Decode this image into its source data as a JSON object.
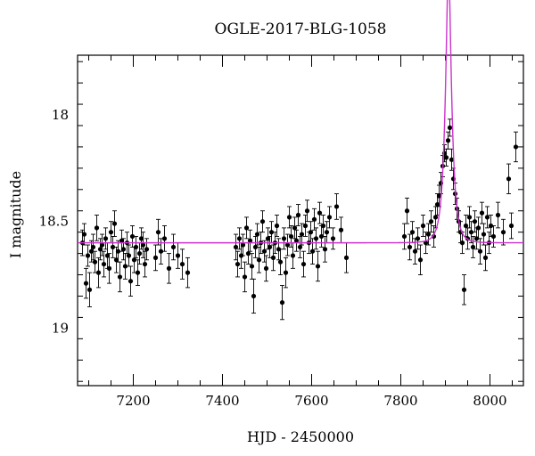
{
  "chart_data": {
    "type": "scatter",
    "title": "OGLE-2017-BLG-1058",
    "xlabel": "HJD - 2450000",
    "ylabel": "I magnitude",
    "xlim": [
      7075,
      8075
    ],
    "ylim": [
      19.27,
      17.72
    ],
    "y_inverted": true,
    "xticks": [
      7200,
      7400,
      7600,
      7800,
      8000
    ],
    "yticks": [
      18,
      18.5,
      19
    ],
    "grid": false,
    "legend": "none",
    "colors": {
      "data": "#000000",
      "model": "#cc33cc"
    },
    "series": [
      {
        "kind": "observations",
        "points": [
          [
            7086,
            18.6,
            0.06
          ],
          [
            7090,
            18.56,
            0.05
          ],
          [
            7094,
            18.79,
            0.07
          ],
          [
            7098,
            18.66,
            0.05
          ],
          [
            7102,
            18.82,
            0.08
          ],
          [
            7106,
            18.64,
            0.05
          ],
          [
            7110,
            18.62,
            0.06
          ],
          [
            7114,
            18.69,
            0.05
          ],
          [
            7118,
            18.53,
            0.06
          ],
          [
            7122,
            18.74,
            0.07
          ],
          [
            7126,
            18.63,
            0.05
          ],
          [
            7130,
            18.61,
            0.05
          ],
          [
            7134,
            18.7,
            0.06
          ],
          [
            7138,
            18.58,
            0.05
          ],
          [
            7142,
            18.66,
            0.06
          ],
          [
            7146,
            18.72,
            0.07
          ],
          [
            7150,
            18.55,
            0.05
          ],
          [
            7154,
            18.62,
            0.05
          ],
          [
            7158,
            18.51,
            0.06
          ],
          [
            7162,
            18.68,
            0.06
          ],
          [
            7166,
            18.64,
            0.05
          ],
          [
            7170,
            18.76,
            0.07
          ],
          [
            7174,
            18.59,
            0.05
          ],
          [
            7178,
            18.63,
            0.05
          ],
          [
            7182,
            18.71,
            0.06
          ],
          [
            7186,
            18.6,
            0.05
          ],
          [
            7190,
            18.66,
            0.05
          ],
          [
            7194,
            18.78,
            0.07
          ],
          [
            7198,
            18.57,
            0.05
          ],
          [
            7202,
            18.68,
            0.06
          ],
          [
            7206,
            18.62,
            0.05
          ],
          [
            7210,
            18.74,
            0.06
          ],
          [
            7214,
            18.65,
            0.05
          ],
          [
            7218,
            18.58,
            0.05
          ],
          [
            7222,
            18.61,
            0.06
          ],
          [
            7226,
            18.7,
            0.06
          ],
          [
            7230,
            18.63,
            0.05
          ],
          [
            7250,
            18.67,
            0.06
          ],
          [
            7256,
            18.55,
            0.06
          ],
          [
            7262,
            18.64,
            0.06
          ],
          [
            7270,
            18.58,
            0.06
          ],
          [
            7280,
            18.72,
            0.07
          ],
          [
            7290,
            18.62,
            0.06
          ],
          [
            7300,
            18.66,
            0.06
          ],
          [
            7310,
            18.7,
            0.07
          ],
          [
            7322,
            18.74,
            0.07
          ],
          [
            7430,
            18.62,
            0.06
          ],
          [
            7434,
            18.7,
            0.06
          ],
          [
            7438,
            18.58,
            0.05
          ],
          [
            7442,
            18.66,
            0.06
          ],
          [
            7446,
            18.61,
            0.05
          ],
          [
            7450,
            18.76,
            0.07
          ],
          [
            7454,
            18.53,
            0.05
          ],
          [
            7458,
            18.65,
            0.05
          ],
          [
            7462,
            18.59,
            0.05
          ],
          [
            7466,
            18.71,
            0.06
          ],
          [
            7470,
            18.85,
            0.08
          ],
          [
            7474,
            18.62,
            0.05
          ],
          [
            7478,
            18.56,
            0.05
          ],
          [
            7482,
            18.68,
            0.06
          ],
          [
            7486,
            18.6,
            0.05
          ],
          [
            7490,
            18.5,
            0.05
          ],
          [
            7494,
            18.64,
            0.05
          ],
          [
            7498,
            18.72,
            0.06
          ],
          [
            7502,
            18.58,
            0.05
          ],
          [
            7506,
            18.62,
            0.05
          ],
          [
            7510,
            18.55,
            0.05
          ],
          [
            7514,
            18.67,
            0.06
          ],
          [
            7518,
            18.6,
            0.05
          ],
          [
            7522,
            18.52,
            0.05
          ],
          [
            7526,
            18.63,
            0.05
          ],
          [
            7530,
            18.69,
            0.06
          ],
          [
            7534,
            18.88,
            0.08
          ],
          [
            7538,
            18.58,
            0.05
          ],
          [
            7542,
            18.74,
            0.07
          ],
          [
            7546,
            18.61,
            0.05
          ],
          [
            7550,
            18.48,
            0.05
          ],
          [
            7554,
            18.57,
            0.05
          ],
          [
            7558,
            18.66,
            0.06
          ],
          [
            7562,
            18.53,
            0.05
          ],
          [
            7566,
            18.59,
            0.05
          ],
          [
            7570,
            18.47,
            0.05
          ],
          [
            7574,
            18.62,
            0.05
          ],
          [
            7578,
            18.56,
            0.05
          ],
          [
            7582,
            18.7,
            0.06
          ],
          [
            7586,
            18.52,
            0.05
          ],
          [
            7590,
            18.45,
            0.05
          ],
          [
            7594,
            18.6,
            0.05
          ],
          [
            7598,
            18.55,
            0.05
          ],
          [
            7602,
            18.64,
            0.06
          ],
          [
            7606,
            18.49,
            0.05
          ],
          [
            7610,
            18.58,
            0.05
          ],
          [
            7614,
            18.71,
            0.07
          ],
          [
            7618,
            18.46,
            0.05
          ],
          [
            7622,
            18.57,
            0.05
          ],
          [
            7626,
            18.52,
            0.05
          ],
          [
            7630,
            18.63,
            0.06
          ],
          [
            7634,
            18.55,
            0.05
          ],
          [
            7640,
            18.48,
            0.05
          ],
          [
            7648,
            18.58,
            0.05
          ],
          [
            7656,
            18.43,
            0.06
          ],
          [
            7666,
            18.54,
            0.06
          ],
          [
            7678,
            18.67,
            0.07
          ],
          [
            7808,
            18.57,
            0.06
          ],
          [
            7814,
            18.45,
            0.06
          ],
          [
            7820,
            18.62,
            0.06
          ],
          [
            7826,
            18.55,
            0.05
          ],
          [
            7832,
            18.64,
            0.06
          ],
          [
            7838,
            18.58,
            0.05
          ],
          [
            7844,
            18.68,
            0.07
          ],
          [
            7850,
            18.52,
            0.05
          ],
          [
            7856,
            18.6,
            0.05
          ],
          [
            7862,
            18.56,
            0.05
          ],
          [
            7868,
            18.5,
            0.05
          ],
          [
            7874,
            18.57,
            0.05
          ],
          [
            7878,
            18.48,
            0.05
          ],
          [
            7882,
            18.42,
            0.05
          ],
          [
            7886,
            18.38,
            0.05
          ],
          [
            7890,
            18.32,
            0.05
          ],
          [
            7894,
            18.24,
            0.05
          ],
          [
            7898,
            18.18,
            0.04
          ],
          [
            7902,
            18.2,
            0.04
          ],
          [
            7906,
            18.12,
            0.04
          ],
          [
            7910,
            18.06,
            0.04
          ],
          [
            7914,
            18.21,
            0.05
          ],
          [
            7918,
            18.3,
            0.05
          ],
          [
            7922,
            18.37,
            0.05
          ],
          [
            7926,
            18.44,
            0.05
          ],
          [
            7930,
            18.5,
            0.05
          ],
          [
            7934,
            18.55,
            0.05
          ],
          [
            7938,
            18.6,
            0.05
          ],
          [
            7942,
            18.82,
            0.07
          ],
          [
            7946,
            18.52,
            0.05
          ],
          [
            7950,
            18.58,
            0.05
          ],
          [
            7954,
            18.48,
            0.05
          ],
          [
            7958,
            18.55,
            0.05
          ],
          [
            7962,
            18.62,
            0.05
          ],
          [
            7966,
            18.5,
            0.05
          ],
          [
            7970,
            18.58,
            0.05
          ],
          [
            7974,
            18.53,
            0.05
          ],
          [
            7978,
            18.64,
            0.06
          ],
          [
            7982,
            18.46,
            0.05
          ],
          [
            7986,
            18.56,
            0.05
          ],
          [
            7990,
            18.67,
            0.06
          ],
          [
            7994,
            18.48,
            0.05
          ],
          [
            7998,
            18.6,
            0.05
          ],
          [
            8002,
            18.52,
            0.05
          ],
          [
            8008,
            18.57,
            0.05
          ],
          [
            8018,
            18.47,
            0.06
          ],
          [
            8030,
            18.55,
            0.06
          ],
          [
            8042,
            18.3,
            0.07
          ],
          [
            8048,
            18.52,
            0.06
          ],
          [
            8058,
            18.15,
            0.07
          ]
        ]
      },
      {
        "kind": "model",
        "baseline": 18.6,
        "t0": 7907,
        "tE": 14,
        "u0": 0.31
      }
    ]
  }
}
